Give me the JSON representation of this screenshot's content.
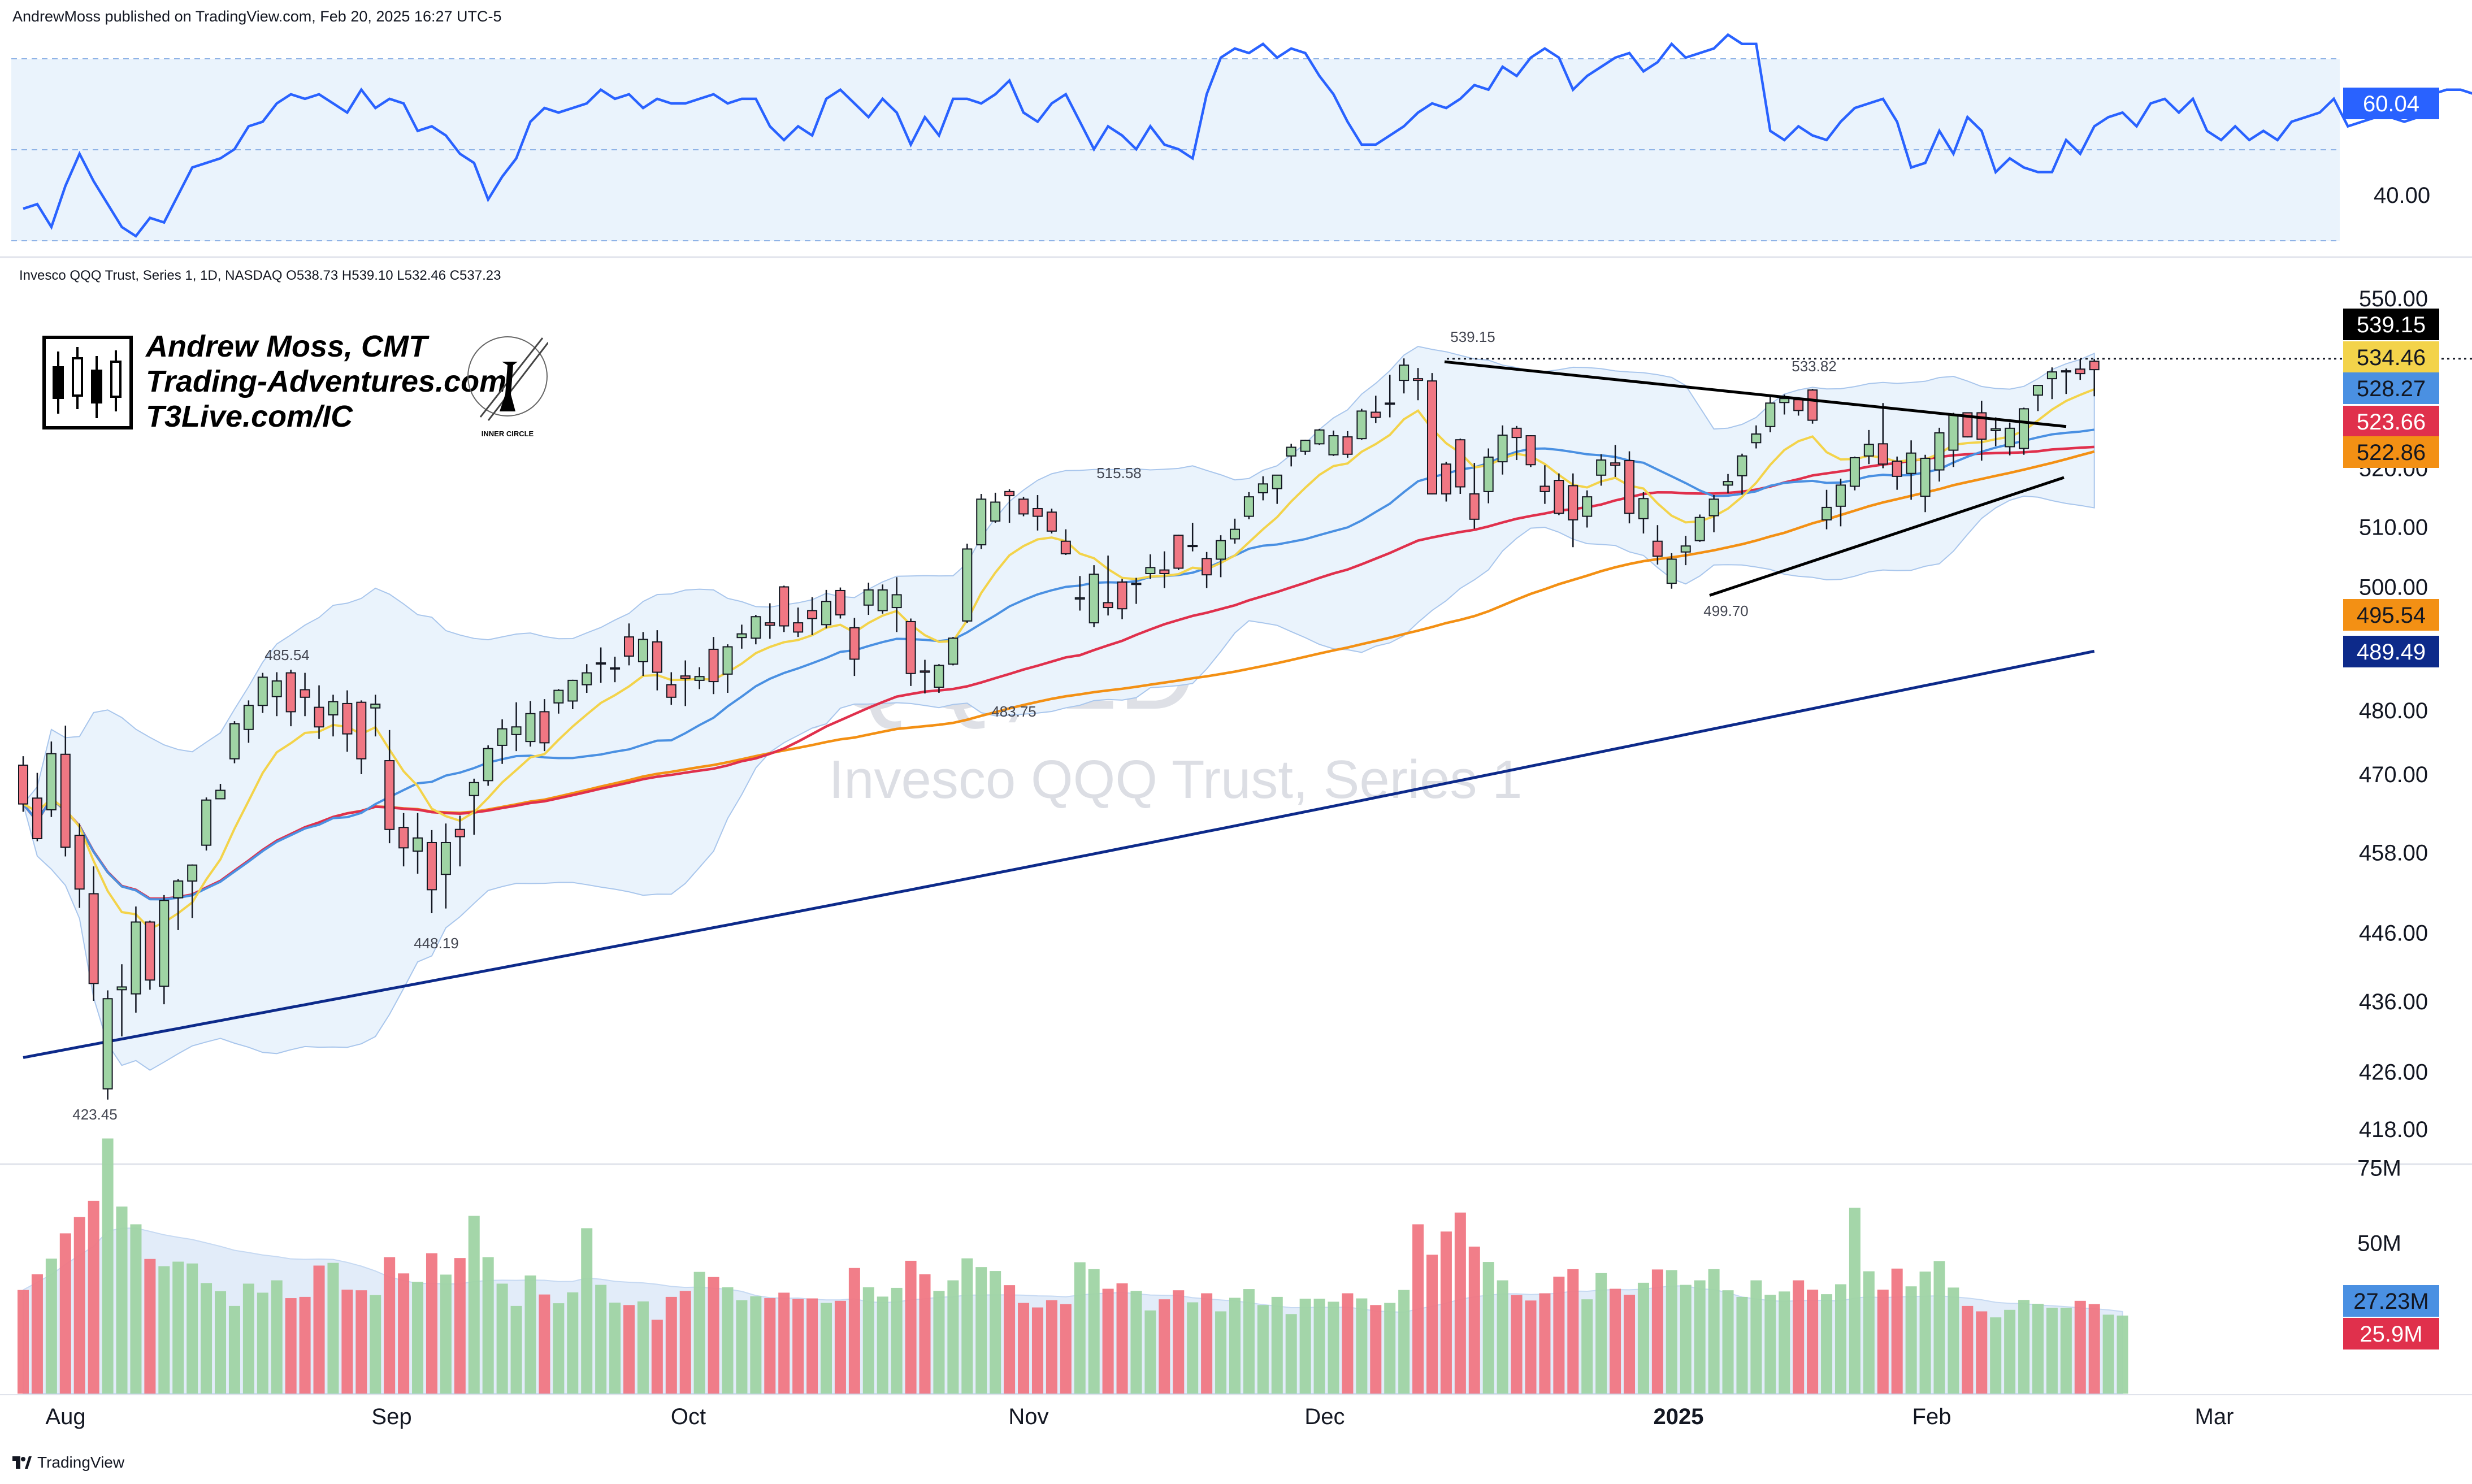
{
  "header": {
    "published_by": "AndrewMoss published on TradingView.com, Feb 20, 2025 16:27 UTC-5"
  },
  "symbol_legend": "Invesco QQQ Trust, Series 1, 1D, NASDAQ  O538.73  H539.10  L532.46  C537.23",
  "watermark": {
    "ticker": "QQQ, 1D",
    "name": "Invesco QQQ Trust, Series 1"
  },
  "branding": {
    "line1": "Andrew Moss, CMT",
    "line2": "Trading-Adventures.com",
    "line3": "T3Live.com/IC",
    "seal_text": "INNER CIRCLE"
  },
  "footer": {
    "label": "TradingView"
  },
  "colors": {
    "up": "#9fd4a4",
    "down": "#f07783",
    "rsi": "#2962ff",
    "ema8": "#f3d34a",
    "sma21": "#4a90e2",
    "sma50": "#e0304c",
    "sma100": "#f39014",
    "sma200": "#0d2a8a",
    "band": "#eaf3fc"
  },
  "chart_data": [
    {
      "type": "line",
      "panel": "rsi",
      "y_ticks": [
        "60.00",
        "40.00"
      ],
      "current_label": "60.04",
      "series": [
        {
          "values": [
            37,
            38,
            33,
            42,
            49,
            43,
            38,
            33,
            31,
            35,
            34,
            40,
            46,
            47,
            48,
            50,
            55,
            56,
            60,
            62,
            61,
            62,
            60,
            58,
            63,
            59,
            61,
            60,
            54,
            55,
            53,
            49,
            47,
            39,
            44,
            48,
            56,
            59,
            58,
            59,
            60,
            63,
            61,
            62,
            59,
            61,
            60,
            60,
            61,
            62,
            60,
            61,
            61,
            55,
            52,
            55,
            53,
            61,
            63,
            60,
            57,
            61,
            58,
            51,
            57,
            53,
            61,
            61,
            60,
            62,
            65,
            58,
            56,
            60,
            62,
            56,
            50,
            55,
            53,
            50,
            55,
            51,
            50,
            48,
            62,
            70,
            72,
            71,
            73,
            70,
            72,
            71,
            66,
            62,
            56,
            51,
            51,
            53,
            55,
            58,
            60,
            59,
            61,
            64,
            63,
            68,
            66,
            70,
            72,
            70,
            63,
            66,
            68,
            70,
            71,
            67,
            69,
            73,
            70,
            71,
            72,
            75,
            73,
            73,
            54,
            52,
            55,
            53,
            52,
            56,
            59,
            60,
            61,
            56,
            46,
            47,
            54,
            49,
            57,
            54,
            45,
            48,
            46,
            45,
            45,
            52,
            49,
            55,
            57,
            58,
            55,
            60,
            61,
            58,
            61,
            54,
            52,
            55,
            52,
            54,
            52,
            56,
            57,
            58,
            61,
            55,
            56,
            57,
            57,
            56,
            57,
            62,
            63,
            63,
            62,
            60
          ]
        }
      ]
    },
    {
      "type": "candlestick",
      "panel": "price",
      "y_ticks": [
        "550.00",
        "520.00",
        "510.00",
        "500.00",
        "480.00",
        "470.00",
        "458.00",
        "446.00",
        "436.00",
        "426.00",
        "418.00"
      ],
      "x_ticks": [
        "Aug",
        "Sep",
        "Oct",
        "Nov",
        "Dec",
        "2025",
        "Feb",
        "Mar"
      ],
      "annotations": [
        "539.15",
        "533.82",
        "515.58",
        "485.54",
        "483.75",
        "499.70",
        "448.19",
        "423.45"
      ],
      "current_labels": [
        "539.15",
        "534.46",
        "528.27",
        "523.66",
        "522.86",
        "495.54",
        "489.49"
      ],
      "ohlc": [
        [
          471.4,
          472.8,
          464.2,
          465.4
        ],
        [
          466.3,
          470.2,
          459.7,
          460.1
        ],
        [
          464.5,
          475.1,
          463.4,
          473.2
        ],
        [
          473.1,
          477.6,
          457.4,
          458.8
        ],
        [
          460.6,
          462.4,
          449.7,
          452.5
        ],
        [
          451.8,
          455.9,
          436.1,
          438.6
        ],
        [
          423.6,
          437.6,
          422.1,
          436.4
        ],
        [
          437.7,
          441.4,
          431.0,
          438.1
        ],
        [
          437.1,
          449.9,
          434.4,
          447.6
        ],
        [
          447.6,
          447.8,
          437.7,
          439.1
        ],
        [
          438.2,
          451.6,
          435.6,
          450.8
        ],
        [
          451.2,
          454.0,
          446.4,
          453.7
        ],
        [
          453.7,
          456.2,
          448.2,
          456.1
        ],
        [
          459.1,
          466.4,
          458.3,
          466.0
        ],
        [
          466.2,
          468.5,
          466.2,
          467.5
        ],
        [
          472.4,
          478.3,
          471.7,
          477.9
        ],
        [
          477.0,
          481.6,
          474.9,
          480.8
        ],
        [
          480.8,
          486.0,
          479.6,
          485.3
        ],
        [
          482.2,
          486.1,
          479.1,
          484.7
        ],
        [
          486.0,
          486.5,
          477.5,
          479.8
        ],
        [
          483.3,
          486.0,
          479.1,
          482.1
        ],
        [
          480.5,
          484.0,
          475.5,
          477.4
        ],
        [
          479.3,
          482.5,
          475.9,
          481.4
        ],
        [
          481.1,
          483.2,
          473.5,
          476.3
        ],
        [
          481.3,
          481.6,
          470.0,
          472.4
        ],
        [
          480.4,
          482.5,
          475.9,
          481.0
        ],
        [
          472.1,
          476.9,
          459.4,
          461.5
        ],
        [
          461.8,
          464.0,
          455.9,
          458.7
        ],
        [
          458.2,
          464.0,
          454.8,
          460.2
        ],
        [
          459.5,
          461.4,
          448.9,
          452.4
        ],
        [
          454.7,
          462.4,
          449.6,
          459.5
        ],
        [
          461.5,
          463.6,
          455.9,
          460.4
        ],
        [
          466.7,
          469.3,
          460.7,
          468.7
        ],
        [
          469.0,
          474.5,
          468.2,
          474.0
        ],
        [
          474.5,
          478.6,
          471.6,
          477.1
        ],
        [
          476.2,
          481.3,
          473.6,
          477.4
        ],
        [
          475.1,
          481.5,
          474.3,
          479.5
        ],
        [
          479.8,
          481.8,
          473.6,
          474.9
        ],
        [
          481.2,
          483.4,
          479.5,
          483.2
        ],
        [
          481.5,
          484.9,
          480.2,
          484.8
        ],
        [
          484.1,
          487.4,
          482.8,
          486.0
        ],
        [
          487.5,
          490.1,
          484.4,
          487.6
        ],
        [
          486.7,
          488.6,
          484.5,
          486.8
        ],
        [
          491.8,
          494.0,
          487.2,
          488.7
        ],
        [
          487.8,
          492.6,
          485.5,
          491.4
        ],
        [
          491.0,
          492.9,
          483.2,
          486.1
        ],
        [
          484.1,
          486.1,
          480.9,
          482.1
        ],
        [
          485.5,
          488.0,
          480.7,
          485.1
        ],
        [
          484.8,
          486.9,
          483.4,
          485.4
        ],
        [
          489.8,
          491.8,
          482.6,
          484.6
        ],
        [
          485.8,
          490.6,
          482.8,
          490.2
        ],
        [
          491.7,
          493.8,
          489.9,
          492.3
        ],
        [
          491.6,
          495.4,
          490.6,
          495.1
        ],
        [
          494.1,
          497.3,
          491.5,
          493.7
        ],
        [
          500.0,
          500.2,
          492.6,
          493.6
        ],
        [
          494.1,
          496.6,
          491.8,
          492.6
        ],
        [
          496.1,
          498.3,
          492.1,
          494.8
        ],
        [
          493.8,
          499.5,
          493.2,
          497.6
        ],
        [
          499.4,
          499.9,
          494.8,
          495.4
        ],
        [
          493.3,
          494.9,
          485.5,
          488.2
        ],
        [
          497.0,
          500.7,
          495.4,
          499.5
        ],
        [
          496.1,
          500.4,
          495.6,
          499.5
        ],
        [
          496.6,
          501.6,
          492.6,
          498.7
        ],
        [
          494.3,
          494.8,
          483.9,
          485.9
        ],
        [
          486.3,
          488.1,
          482.7,
          486.1
        ],
        [
          483.7,
          487.4,
          482.8,
          487.2
        ],
        [
          487.4,
          491.8,
          487.2,
          491.6
        ],
        [
          494.4,
          507.2,
          494.1,
          506.3
        ],
        [
          507.0,
          515.6,
          506.3,
          514.7
        ],
        [
          511.0,
          515.8,
          510.7,
          514.2
        ],
        [
          516.0,
          516.4,
          510.7,
          515.3
        ],
        [
          514.7,
          515.1,
          511.8,
          512.2
        ],
        [
          513.1,
          515.4,
          509.4,
          511.8
        ],
        [
          512.5,
          513.1,
          508.9,
          509.3
        ],
        [
          507.6,
          509.6,
          505.3,
          505.5
        ],
        [
          498.0,
          501.8,
          496.1,
          498.2
        ],
        [
          494.1,
          503.6,
          493.4,
          502.1
        ],
        [
          497.4,
          505.2,
          495.3,
          496.6
        ],
        [
          500.8,
          501.3,
          494.7,
          496.4
        ],
        [
          500.4,
          501.5,
          497.2,
          500.6
        ],
        [
          502.2,
          505.4,
          501.3,
          503.2
        ],
        [
          502.8,
          505.9,
          499.8,
          502.2
        ],
        [
          508.6,
          508.7,
          502.8,
          503.1
        ],
        [
          506.9,
          510.7,
          505.9,
          506.9
        ],
        [
          504.7,
          505.8,
          499.8,
          502.0
        ],
        [
          504.6,
          508.6,
          501.6,
          507.7
        ],
        [
          508.0,
          511.4,
          507.2,
          509.6
        ],
        [
          511.8,
          515.9,
          511.3,
          515.1
        ],
        [
          515.8,
          518.6,
          514.5,
          517.3
        ],
        [
          516.5,
          518.8,
          513.9,
          518.8
        ],
        [
          522.1,
          524.2,
          520.3,
          523.6
        ],
        [
          522.9,
          524.9,
          522.3,
          524.8
        ],
        [
          524.2,
          526.8,
          524.0,
          526.6
        ],
        [
          522.3,
          526.5,
          522.1,
          525.6
        ],
        [
          525.4,
          526.4,
          521.8,
          522.4
        ],
        [
          525.1,
          530.3,
          524.9,
          529.9
        ],
        [
          529.7,
          532.6,
          527.8,
          528.8
        ],
        [
          531.2,
          536.3,
          528.8,
          531.3
        ],
        [
          535.3,
          539.2,
          533.0,
          538.0
        ],
        [
          535.6,
          537.5,
          531.8,
          535.3
        ],
        [
          535.2,
          536.6,
          515.5,
          515.6
        ],
        [
          520.7,
          521.1,
          514.3,
          515.6
        ],
        [
          524.9,
          525.1,
          515.6,
          516.8
        ],
        [
          515.6,
          520.9,
          509.7,
          511.3
        ],
        [
          516.0,
          523.4,
          514.0,
          521.9
        ],
        [
          521.1,
          527.4,
          518.9,
          525.7
        ],
        [
          526.9,
          527.3,
          521.4,
          525.3
        ],
        [
          525.6,
          525.7,
          520.2,
          520.6
        ],
        [
          516.9,
          520.5,
          513.9,
          516.0
        ],
        [
          517.9,
          519.1,
          512.0,
          512.3
        ],
        [
          517.0,
          519.1,
          506.6,
          511.2
        ],
        [
          511.8,
          516.2,
          509.9,
          515.1
        ],
        [
          518.8,
          522.4,
          517.0,
          521.4
        ],
        [
          520.9,
          524.0,
          518.5,
          520.5
        ],
        [
          521.3,
          522.9,
          510.6,
          512.3
        ],
        [
          511.4,
          515.9,
          508.9,
          514.8
        ],
        [
          507.6,
          510.3,
          503.7,
          505.1
        ],
        [
          500.6,
          505.6,
          499.7,
          504.6
        ],
        [
          505.8,
          508.5,
          503.6,
          506.8
        ],
        [
          507.7,
          512.1,
          507.5,
          511.6
        ],
        [
          511.9,
          515.4,
          509.1,
          514.7
        ],
        [
          517.1,
          519.0,
          515.7,
          517.7
        ],
        [
          518.7,
          522.5,
          515.5,
          522.1
        ],
        [
          524.4,
          527.4,
          523.4,
          525.9
        ],
        [
          527.2,
          532.8,
          526.2,
          531.3
        ],
        [
          531.4,
          532.8,
          529.3,
          532.1
        ],
        [
          531.9,
          532.1,
          529.1,
          530.0
        ],
        [
          533.6,
          533.8,
          527.7,
          528.3
        ],
        [
          511.2,
          516.3,
          509.6,
          513.3
        ],
        [
          513.5,
          518.2,
          510.1,
          517.1
        ],
        [
          516.9,
          522.0,
          516.2,
          521.8
        ],
        [
          522.1,
          526.6,
          520.7,
          524.1
        ],
        [
          524.2,
          531.3,
          520.0,
          520.7
        ],
        [
          521.2,
          522.0,
          516.3,
          518.6
        ],
        [
          519.1,
          524.8,
          514.6,
          522.6
        ],
        [
          515.2,
          522.3,
          512.5,
          521.7
        ],
        [
          519.7,
          527.0,
          517.7,
          526.1
        ],
        [
          523.1,
          529.6,
          520.2,
          529.3
        ],
        [
          529.6,
          529.6,
          525.3,
          525.4
        ],
        [
          529.6,
          531.7,
          521.3,
          525.0
        ],
        [
          526.5,
          528.8,
          523.8,
          526.8
        ],
        [
          523.7,
          527.9,
          522.2,
          526.9
        ],
        [
          523.4,
          530.5,
          522.3,
          530.3
        ],
        [
          532.7,
          534.5,
          529.9,
          534.4
        ],
        [
          535.6,
          537.6,
          532.0,
          536.8
        ],
        [
          536.8,
          537.4,
          532.9,
          537.0
        ],
        [
          537.3,
          539.1,
          535.4,
          536.5
        ],
        [
          538.7,
          539.1,
          532.5,
          537.2
        ]
      ]
    },
    {
      "type": "bar",
      "panel": "volume",
      "y_ticks": [
        "75M",
        "50M"
      ],
      "current_labels": [
        "27.23M",
        "25.9M"
      ],
      "values": [
        34.4,
        39.6,
        44.8,
        53.2,
        58.6,
        64.0,
        84.7,
        62.1,
        56.2,
        44.7,
        42.3,
        43.8,
        43.2,
        36.7,
        34.0,
        29.1,
        36.5,
        33.5,
        37.6,
        31.7,
        32.1,
        42.5,
        43.4,
        34.5,
        34.3,
        32.7,
        45.3,
        39.9,
        37.1,
        46.6,
        39.5,
        45.0,
        59.0,
        45.3,
        36.5,
        29.1,
        39.2,
        32.9,
        30.0,
        33.6,
        54.9,
        36.1,
        30.2,
        29.4,
        30.6,
        24.5,
        32.1,
        34.1,
        40.4,
        38.7,
        35.3,
        31.0,
        32.3,
        31.7,
        33.5,
        31.4,
        31.6,
        30.1,
        30.8,
        41.7,
        35.3,
        32.2,
        35.1,
        44.1,
        39.6,
        34.1,
        37.6,
        44.9,
        42.0,
        40.7,
        36.0,
        30.1,
        28.6,
        31.0,
        29.7,
        43.6,
        41.3,
        34.8,
        36.6,
        34.1,
        27.6,
        31.3,
        34.3,
        30.3,
        33.3,
        27.3,
        31.8,
        34.7,
        29.4,
        32.1,
        26.4,
        31.5,
        31.5,
        30.5,
        33.3,
        31.6,
        29.4,
        30.1,
        34.4,
        56.2,
        46.1,
        53.8,
        60.1,
        48.8,
        43.7,
        37.6,
        32.7,
        30.9,
        33.3,
        38.8,
        41.3,
        31.3,
        40.0,
        34.8,
        32.8,
        36.8,
        41.2,
        41.0,
        36.1,
        37.6,
        41.3,
        34.3,
        32.1,
        37.6,
        32.8,
        33.9,
        37.6,
        34.5,
        33.0,
        36.3,
        61.7,
        40.6,
        34.5,
        41.5,
        35.6,
        40.5,
        44.0,
        35.2,
        29.1,
        27.3,
        25.3,
        27.8,
        31.1,
        29.8,
        28.5,
        28.5,
        30.8,
        29.7,
        26.2,
        25.9
      ],
      "volume_ma_end": 27.23
    }
  ]
}
